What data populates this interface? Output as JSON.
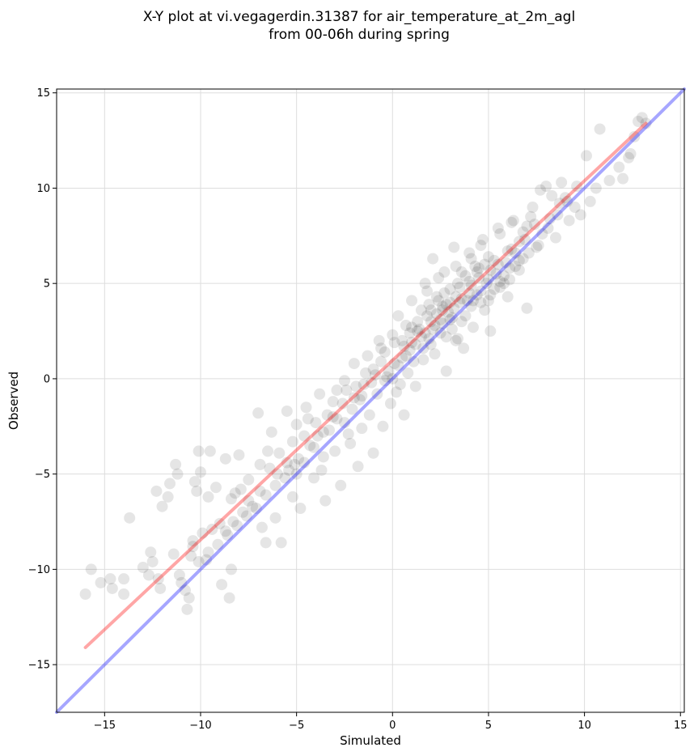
{
  "chart_data": {
    "type": "scatter",
    "title_lines": [
      "X-Y plot at vi.vegagerdin.31387 for air_temperature_at_2m_agl",
      "from 00-06h during spring"
    ],
    "xlabel": "Simulated",
    "ylabel": "Observed",
    "xlim": [
      -17.5,
      15.2
    ],
    "ylim": [
      -17.5,
      15.2
    ],
    "xticks": [
      -15,
      -10,
      -5,
      0,
      5,
      10,
      15
    ],
    "yticks": [
      -15,
      -10,
      -5,
      0,
      5,
      10,
      15
    ],
    "grid": true,
    "point_color": "#000000",
    "point_alpha": 0.1,
    "reference_line": {
      "x": [
        -17.5,
        15.2
      ],
      "y": [
        -17.5,
        15.2
      ],
      "color": "#0000ff"
    },
    "regression_line": {
      "x": [
        -16,
        13.2
      ],
      "y": [
        -14.1,
        13.4
      ],
      "color": "#ff0000"
    },
    "points": [
      [
        -16.0,
        -11.3
      ],
      [
        -15.7,
        -10.0
      ],
      [
        -15.2,
        -10.7
      ],
      [
        -14.7,
        -10.5
      ],
      [
        -14.6,
        -11.0
      ],
      [
        -14.0,
        -11.3
      ],
      [
        -14.0,
        -10.5
      ],
      [
        -13.7,
        -7.3
      ],
      [
        -13.0,
        -9.9
      ],
      [
        -12.7,
        -10.3
      ],
      [
        -12.6,
        -9.1
      ],
      [
        -12.5,
        -9.6
      ],
      [
        -12.2,
        -10.5
      ],
      [
        -12.3,
        -5.9
      ],
      [
        -12.0,
        -6.7
      ],
      [
        -11.7,
        -6.2
      ],
      [
        -11.6,
        -5.5
      ],
      [
        -11.3,
        -4.5
      ],
      [
        -11.2,
        -5.0
      ],
      [
        -11.0,
        -10.7
      ],
      [
        -10.8,
        -11.1
      ],
      [
        -10.6,
        -11.5
      ],
      [
        -10.7,
        -12.1
      ],
      [
        -10.5,
        -9.3
      ],
      [
        -10.4,
        -8.8
      ],
      [
        -10.3,
        -5.4
      ],
      [
        -10.2,
        -5.9
      ],
      [
        -10.1,
        -3.8
      ],
      [
        -10.0,
        -4.9
      ],
      [
        -9.9,
        -8.1
      ],
      [
        -9.7,
        -9.5
      ],
      [
        -9.6,
        -6.2
      ],
      [
        -9.5,
        -3.8
      ],
      [
        -9.2,
        -5.7
      ],
      [
        -9.0,
        -7.6
      ],
      [
        -8.9,
        -10.8
      ],
      [
        -8.7,
        -8.0
      ],
      [
        -8.7,
        -4.2
      ],
      [
        -8.5,
        -11.5
      ],
      [
        -8.4,
        -10.0
      ],
      [
        -8.3,
        -7.5
      ],
      [
        -8.2,
        -6.0
      ],
      [
        -8.0,
        -4.0
      ],
      [
        -7.8,
        -7.0
      ],
      [
        -7.5,
        -6.4
      ],
      [
        -7.5,
        -5.3
      ],
      [
        -7.3,
        -6.7
      ],
      [
        -7.0,
        -1.8
      ],
      [
        -6.9,
        -4.5
      ],
      [
        -6.8,
        -7.8
      ],
      [
        -6.6,
        -8.6
      ],
      [
        -6.5,
        -3.8
      ],
      [
        -6.3,
        -2.8
      ],
      [
        -6.1,
        -7.3
      ],
      [
        -6.0,
        -5.0
      ],
      [
        -5.8,
        -8.6
      ],
      [
        -5.5,
        -4.4
      ],
      [
        -5.5,
        -1.7
      ],
      [
        -5.2,
        -6.2
      ],
      [
        -5.2,
        -3.3
      ],
      [
        -5.0,
        -5.0
      ],
      [
        -5.0,
        -2.4
      ],
      [
        -4.8,
        -6.8
      ],
      [
        -4.6,
        -4.4
      ],
      [
        -4.5,
        -1.5
      ],
      [
        -4.3,
        -3.5
      ],
      [
        -4.1,
        -5.2
      ],
      [
        -4.0,
        -2.3
      ],
      [
        -3.8,
        -0.8
      ],
      [
        -3.6,
        -4.1
      ],
      [
        -3.5,
        -6.4
      ],
      [
        -3.3,
        -2.7
      ],
      [
        -3.1,
        -1.2
      ],
      [
        -3.0,
        -3.8
      ],
      [
        -2.9,
        -0.6
      ],
      [
        -2.7,
        -5.6
      ],
      [
        -2.5,
        -2.3
      ],
      [
        -2.5,
        -0.1
      ],
      [
        -2.2,
        -3.4
      ],
      [
        -2.0,
        -1.0
      ],
      [
        -2.0,
        0.8
      ],
      [
        -1.8,
        -4.6
      ],
      [
        -1.6,
        -2.6
      ],
      [
        -1.5,
        -0.3
      ],
      [
        -1.3,
        1.2
      ],
      [
        -1.2,
        -1.9
      ],
      [
        -1.0,
        -3.9
      ],
      [
        -1.0,
        0.5
      ],
      [
        -0.8,
        -0.8
      ],
      [
        -0.7,
        2.0
      ],
      [
        -0.5,
        -2.5
      ],
      [
        -0.4,
        1.4
      ],
      [
        -0.3,
        0.1
      ],
      [
        -0.1,
        -1.3
      ],
      [
        0.0,
        2.3
      ],
      [
        0.1,
        0.8
      ],
      [
        0.2,
        -0.7
      ],
      [
        0.3,
        3.3
      ],
      [
        0.5,
        1.1
      ],
      [
        0.6,
        -1.9
      ],
      [
        0.7,
        2.8
      ],
      [
        0.8,
        0.3
      ],
      [
        1.0,
        1.9
      ],
      [
        1.0,
        4.1
      ],
      [
        1.2,
        -0.4
      ],
      [
        1.3,
        2.5
      ],
      [
        1.5,
        3.6
      ],
      [
        1.6,
        1.0
      ],
      [
        1.7,
        5.0
      ],
      [
        1.9,
        2.1
      ],
      [
        2.0,
        3.0
      ],
      [
        2.1,
        6.3
      ],
      [
        2.2,
        1.3
      ],
      [
        2.3,
        4.3
      ],
      [
        2.5,
        2.4
      ],
      [
        2.6,
        3.8
      ],
      [
        2.7,
        5.6
      ],
      [
        2.8,
        0.4
      ],
      [
        3.0,
        3.1
      ],
      [
        3.0,
        4.7
      ],
      [
        3.2,
        6.9
      ],
      [
        3.3,
        2.0
      ],
      [
        3.5,
        4.0
      ],
      [
        3.6,
        5.6
      ],
      [
        3.7,
        1.6
      ],
      [
        3.8,
        3.3
      ],
      [
        4.0,
        5.1
      ],
      [
        4.1,
        6.3
      ],
      [
        4.2,
        2.7
      ],
      [
        4.4,
        4.4
      ],
      [
        4.5,
        5.8
      ],
      [
        4.6,
        7.0
      ],
      [
        4.8,
        3.6
      ],
      [
        5.0,
        5.2
      ],
      [
        5.0,
        6.4
      ],
      [
        5.1,
        2.5
      ],
      [
        5.3,
        4.7
      ],
      [
        5.5,
        6.0
      ],
      [
        5.6,
        7.6
      ],
      [
        5.8,
        5.4
      ],
      [
        6.0,
        4.3
      ],
      [
        6.0,
        6.7
      ],
      [
        6.2,
        8.2
      ],
      [
        6.4,
        5.9
      ],
      [
        6.6,
        7.2
      ],
      [
        6.8,
        6.3
      ],
      [
        7.0,
        3.7
      ],
      [
        7.0,
        8.0
      ],
      [
        7.3,
        9.0
      ],
      [
        7.5,
        6.9
      ],
      [
        7.8,
        7.6
      ],
      [
        8.0,
        10.1
      ],
      [
        8.2,
        8.4
      ],
      [
        8.5,
        7.4
      ],
      [
        8.7,
        9.2
      ],
      [
        9.0,
        9.5
      ],
      [
        9.2,
        8.3
      ],
      [
        9.5,
        9.0
      ],
      [
        9.8,
        8.6
      ],
      [
        10.1,
        11.7
      ],
      [
        10.3,
        9.3
      ],
      [
        10.6,
        10.0
      ],
      [
        10.8,
        13.1
      ],
      [
        11.3,
        10.4
      ],
      [
        11.8,
        11.1
      ],
      [
        12.0,
        10.5
      ],
      [
        12.3,
        11.6
      ],
      [
        12.6,
        12.7
      ],
      [
        12.8,
        13.5
      ],
      [
        13.0,
        13.7
      ],
      [
        13.2,
        13.4
      ],
      [
        12.4,
        11.8
      ],
      [
        1.0,
        2.7
      ],
      [
        1.5,
        2.2
      ],
      [
        2.0,
        3.6
      ],
      [
        2.5,
        3.1
      ],
      [
        3.0,
        4.0
      ],
      [
        3.5,
        4.8
      ],
      [
        4.0,
        4.5
      ],
      [
        4.5,
        5.3
      ],
      [
        2.2,
        2.8
      ],
      [
        2.8,
        3.9
      ],
      [
        3.3,
        4.3
      ],
      [
        3.8,
        5.4
      ],
      [
        4.3,
        5.9
      ],
      [
        4.8,
        6.0
      ],
      [
        5.3,
        6.2
      ],
      [
        1.8,
        3.3
      ],
      [
        0.5,
        2.0
      ],
      [
        0.9,
        1.5
      ],
      [
        1.4,
        2.6
      ],
      [
        1.9,
        3.9
      ],
      [
        2.4,
        4.1
      ],
      [
        2.9,
        3.5
      ],
      [
        3.4,
        5.0
      ],
      [
        3.9,
        4.1
      ],
      [
        4.4,
        5.6
      ],
      [
        4.9,
        5.0
      ],
      [
        5.4,
        5.5
      ],
      [
        5.9,
        6.1
      ],
      [
        6.4,
        6.6
      ],
      [
        6.9,
        7.3
      ],
      [
        2.6,
        2.9
      ],
      [
        3.1,
        3.2
      ],
      [
        1.3,
        3.0
      ],
      [
        1.7,
        2.4
      ],
      [
        2.3,
        3.4
      ],
      [
        2.7,
        4.5
      ],
      [
        3.2,
        3.7
      ],
      [
        3.6,
        4.2
      ],
      [
        4.1,
        4.9
      ],
      [
        4.6,
        4.6
      ],
      [
        5.1,
        5.7
      ],
      [
        5.6,
        5.1
      ],
      [
        6.1,
        5.8
      ],
      [
        6.6,
        6.2
      ],
      [
        0.7,
        1.2
      ],
      [
        0.3,
        0.7
      ],
      [
        -0.2,
        0.4
      ],
      [
        -0.6,
        0.9
      ],
      [
        -1.1,
        -0.2
      ],
      [
        -1.6,
        -0.9
      ],
      [
        -2.1,
        -1.6
      ],
      [
        -2.6,
        -1.3
      ],
      [
        -3.1,
        -2.0
      ],
      [
        -3.6,
        -2.8
      ],
      [
        -4.1,
        -3.6
      ],
      [
        -4.6,
        -3.0
      ],
      [
        -5.1,
        -4.5
      ],
      [
        -5.6,
        -5.2
      ],
      [
        -6.1,
        -5.6
      ],
      [
        -6.6,
        -6.1
      ],
      [
        -7.1,
        -6.8
      ],
      [
        -7.6,
        -7.2
      ],
      [
        -8.1,
        -7.7
      ],
      [
        -8.6,
        -8.2
      ],
      [
        -9.1,
        -8.7
      ],
      [
        -9.6,
        -9.1
      ],
      [
        -10.1,
        -9.6
      ],
      [
        -11.1,
        -10.3
      ],
      [
        -12.1,
        -11.0
      ],
      [
        -6.4,
        -4.7
      ],
      [
        -5.9,
        -3.9
      ],
      [
        -4.4,
        -2.1
      ],
      [
        -3.4,
        -1.9
      ],
      [
        -2.4,
        -0.6
      ],
      [
        -1.4,
        0.3
      ],
      [
        -0.4,
        -0.1
      ],
      [
        0.6,
        1.7
      ],
      [
        1.1,
        0.9
      ],
      [
        1.6,
        1.6
      ],
      [
        2.1,
        2.6
      ],
      [
        2.6,
        3.6
      ],
      [
        3.1,
        2.6
      ],
      [
        3.6,
        3.0
      ],
      [
        4.1,
        3.8
      ],
      [
        4.6,
        4.0
      ],
      [
        5.1,
        4.4
      ],
      [
        5.6,
        4.8
      ],
      [
        6.1,
        5.2
      ],
      [
        6.6,
        5.7
      ],
      [
        7.1,
        6.6
      ],
      [
        7.6,
        7.0
      ],
      [
        8.1,
        7.9
      ],
      [
        8.6,
        8.6
      ],
      [
        9.1,
        9.3
      ],
      [
        9.6,
        10.1
      ],
      [
        -7.9,
        -5.8
      ],
      [
        -8.4,
        -6.3
      ],
      [
        -9.4,
        -7.9
      ],
      [
        -10.4,
        -8.5
      ],
      [
        -11.4,
        -9.2
      ],
      [
        -6.9,
        -5.9
      ],
      [
        -5.4,
        -4.8
      ],
      [
        -3.9,
        -3.0
      ],
      [
        -2.9,
        -2.1
      ],
      [
        -1.9,
        -0.4
      ],
      [
        -0.9,
        0.2
      ],
      [
        0.1,
        1.9
      ],
      [
        0.4,
        -0.3
      ],
      [
        1.2,
        1.8
      ],
      [
        2.0,
        1.8
      ],
      [
        2.8,
        2.2
      ],
      [
        3.4,
        2.1
      ],
      [
        4.2,
        4.1
      ],
      [
        5.0,
        4.1
      ],
      [
        5.8,
        5.0
      ],
      [
        6.2,
        6.8
      ],
      [
        6.8,
        7.7
      ],
      [
        7.4,
        8.1
      ],
      [
        8.3,
        9.6
      ],
      [
        -4.9,
        -4.2
      ],
      [
        -3.7,
        -4.8
      ],
      [
        -2.3,
        -2.9
      ],
      [
        -1.7,
        -1.1
      ],
      [
        -0.6,
        1.6
      ],
      [
        0.0,
        0.0
      ],
      [
        0.9,
        2.4
      ],
      [
        1.8,
        4.6
      ],
      [
        2.4,
        5.3
      ],
      [
        3.3,
        5.9
      ],
      [
        4.0,
        6.6
      ],
      [
        4.7,
        7.3
      ],
      [
        5.5,
        7.9
      ],
      [
        6.3,
        8.3
      ],
      [
        7.2,
        8.5
      ],
      [
        7.7,
        9.9
      ],
      [
        8.8,
        10.3
      ]
    ]
  }
}
